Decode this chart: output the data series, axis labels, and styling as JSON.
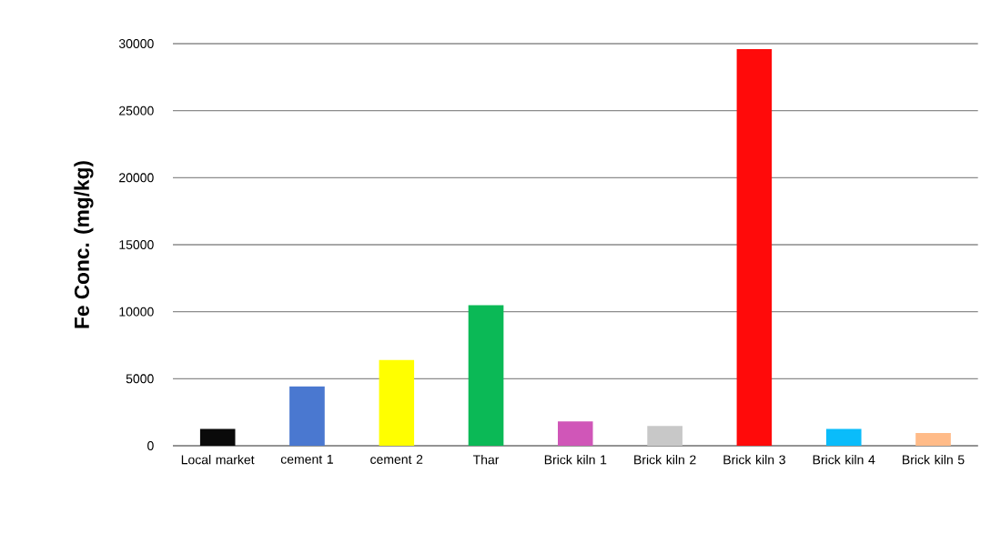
{
  "chart_data": {
    "type": "bar",
    "ylabel": "Fe  Conc.  (mg/kg)",
    "categories": [
      "Local market",
      "cement 1",
      "cement 2",
      "Thar",
      "Brick kiln 1",
      "Brick kiln 2",
      "Brick kiln 3",
      "Brick kiln 4",
      "Brick kiln 5"
    ],
    "values": [
      1250,
      4430,
      6400,
      10490,
      1820,
      1480,
      29600,
      1250,
      950
    ],
    "colors": [
      "#0a0a0a",
      "#4a78d0",
      "#ffff00",
      "#0bb956",
      "#d056b8",
      "#c8c8c8",
      "#ff0a0a",
      "#0abcfa",
      "#ffbb88"
    ],
    "ylim": [
      0,
      30000
    ],
    "yticks": [
      0,
      5000,
      10000,
      15000,
      20000,
      25000,
      30000
    ],
    "grid": "y"
  }
}
